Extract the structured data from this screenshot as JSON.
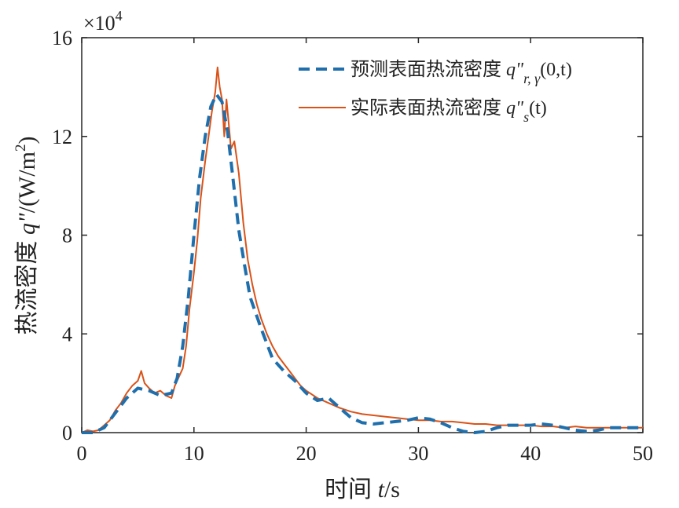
{
  "chart_data": {
    "type": "line",
    "xlabel_text": "时间",
    "xlabel_var": "t",
    "xlabel_unit": "/s",
    "ylabel_text": "热流密度",
    "ylabel_var": "q\"",
    "ylabel_unit": "/(W/m",
    "ylabel_unit_exp": "2",
    "ylabel_close": ")",
    "y_multiplier_base": "×10",
    "y_multiplier_exp": "4",
    "xlim": [
      0,
      50
    ],
    "ylim": [
      0,
      16
    ],
    "x_ticks": [
      0,
      10,
      20,
      30,
      40,
      50
    ],
    "y_ticks": [
      0,
      4,
      8,
      12,
      16
    ],
    "grid": false,
    "legend_position": "top-right",
    "series": [
      {
        "name": "预测表面热流密度",
        "symbol": "q\"",
        "subscript": "r, γ",
        "args": "(0,t)",
        "color": "#1f6fad",
        "style": "dashed",
        "x": [
          0,
          1,
          2,
          3,
          4,
          5,
          6,
          7,
          8,
          8.5,
          9,
          9.5,
          10,
          10.5,
          11,
          11.5,
          12,
          12.5,
          13,
          13.5,
          14,
          14.5,
          15,
          16,
          17,
          18,
          19,
          20,
          21,
          22,
          23,
          24,
          25,
          26,
          27,
          28,
          29,
          30,
          31,
          32,
          33,
          34,
          35,
          36,
          37,
          38,
          39,
          40,
          41,
          42,
          43,
          44,
          45,
          46,
          47,
          48,
          49,
          50
        ],
        "y": [
          0,
          0,
          0.2,
          0.8,
          1.4,
          1.8,
          1.7,
          1.5,
          1.6,
          2.2,
          3.5,
          5.5,
          8.0,
          10.3,
          12.0,
          13.2,
          13.7,
          13.4,
          12.2,
          10.2,
          8.2,
          6.8,
          5.5,
          4.2,
          3.0,
          2.5,
          2.1,
          1.6,
          1.3,
          1.4,
          1.0,
          0.6,
          0.4,
          0.35,
          0.4,
          0.45,
          0.5,
          0.6,
          0.55,
          0.4,
          0.2,
          0.05,
          0.0,
          0.05,
          0.2,
          0.3,
          0.3,
          0.3,
          0.35,
          0.3,
          0.2,
          0.1,
          0.05,
          0.1,
          0.2,
          0.2,
          0.2,
          0.2
        ]
      },
      {
        "name": "实际表面热流密度",
        "symbol": "q\"",
        "subscript": "s",
        "args": "(t)",
        "color": "#d95319",
        "style": "solid",
        "x": [
          0,
          0.5,
          1,
          1.5,
          2,
          2.5,
          3,
          3.5,
          4,
          4.5,
          5,
          5.3,
          5.6,
          6,
          6.5,
          7,
          7.5,
          8,
          8.3,
          8.6,
          9,
          9.3,
          9.6,
          10,
          10.3,
          10.6,
          11,
          11.3,
          11.6,
          11.9,
          12.1,
          12.3,
          12.5,
          12.7,
          12.9,
          13.1,
          13.3,
          13.6,
          14,
          14.4,
          14.8,
          15.2,
          15.6,
          16,
          16.5,
          17,
          17.5,
          18,
          18.5,
          19,
          19.5,
          20,
          21,
          22,
          23,
          24,
          25,
          26,
          27,
          28,
          29,
          30,
          31,
          32,
          33,
          34,
          35,
          36,
          37,
          38,
          39,
          40,
          41,
          42,
          43,
          44,
          45,
          46,
          47,
          48,
          49,
          50
        ],
        "y": [
          0,
          0.1,
          0.05,
          0.1,
          0.3,
          0.5,
          0.9,
          1.2,
          1.6,
          1.9,
          2.1,
          2.5,
          2.0,
          1.8,
          1.6,
          1.7,
          1.5,
          1.4,
          1.9,
          2.2,
          2.6,
          3.5,
          5.0,
          6.5,
          7.8,
          9.5,
          11.0,
          12.0,
          13.0,
          13.8,
          14.8,
          14.0,
          13.5,
          12.0,
          13.5,
          12.5,
          11.5,
          11.8,
          10.5,
          8.5,
          7.0,
          6.0,
          5.2,
          4.6,
          4.0,
          3.5,
          3.1,
          2.8,
          2.5,
          2.2,
          1.9,
          1.7,
          1.4,
          1.2,
          1.0,
          0.85,
          0.75,
          0.7,
          0.65,
          0.6,
          0.55,
          0.5,
          0.5,
          0.45,
          0.45,
          0.4,
          0.35,
          0.35,
          0.3,
          0.3,
          0.3,
          0.3,
          0.25,
          0.25,
          0.2,
          0.25,
          0.2,
          0.2,
          0.2,
          0.2,
          0.2,
          0.2
        ]
      }
    ]
  }
}
